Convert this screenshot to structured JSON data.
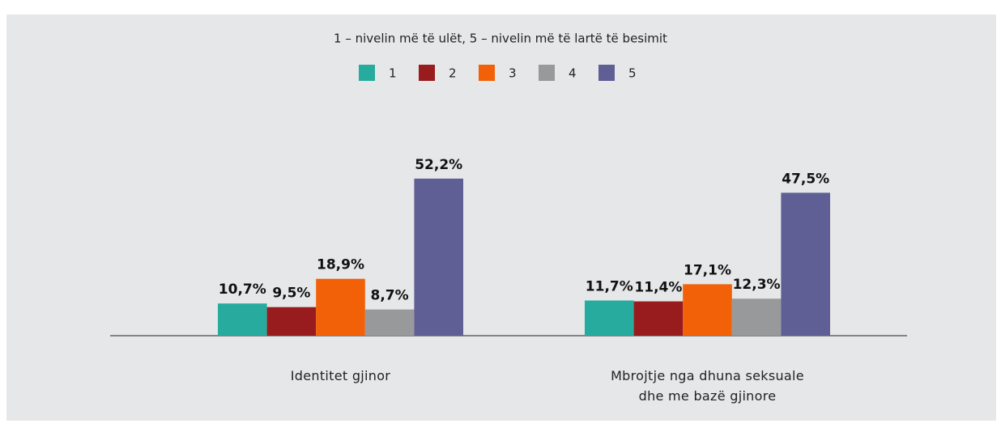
{
  "chart_data": {
    "type": "bar",
    "subtitle": "1 – nivelin më të ulët, 5 – nivelin më të lartë të besimit",
    "categories": [
      "Identitet gjinor",
      "Mbrojtje nga dhuna seksuale\ndhe me bazë gjinore"
    ],
    "series": [
      {
        "name": "1",
        "color": "#26ab9e",
        "values": [
          10.7,
          11.7
        ],
        "value_labels": [
          "10,7%",
          "11,7%"
        ]
      },
      {
        "name": "2",
        "color": "#981b1e",
        "values": [
          9.5,
          11.4
        ],
        "value_labels": [
          "9,5%",
          "11,4%"
        ]
      },
      {
        "name": "3",
        "color": "#f26107",
        "values": [
          18.9,
          17.1
        ],
        "value_labels": [
          "18,9%",
          "17,1%"
        ]
      },
      {
        "name": "4",
        "color": "#98999b",
        "values": [
          8.7,
          12.3
        ],
        "value_labels": [
          "8,7%",
          "12,3%"
        ]
      },
      {
        "name": "5",
        "color": "#5f5f96",
        "values": [
          52.2,
          47.5
        ],
        "value_labels": [
          "52,2%",
          "47,5%"
        ]
      }
    ]
  }
}
